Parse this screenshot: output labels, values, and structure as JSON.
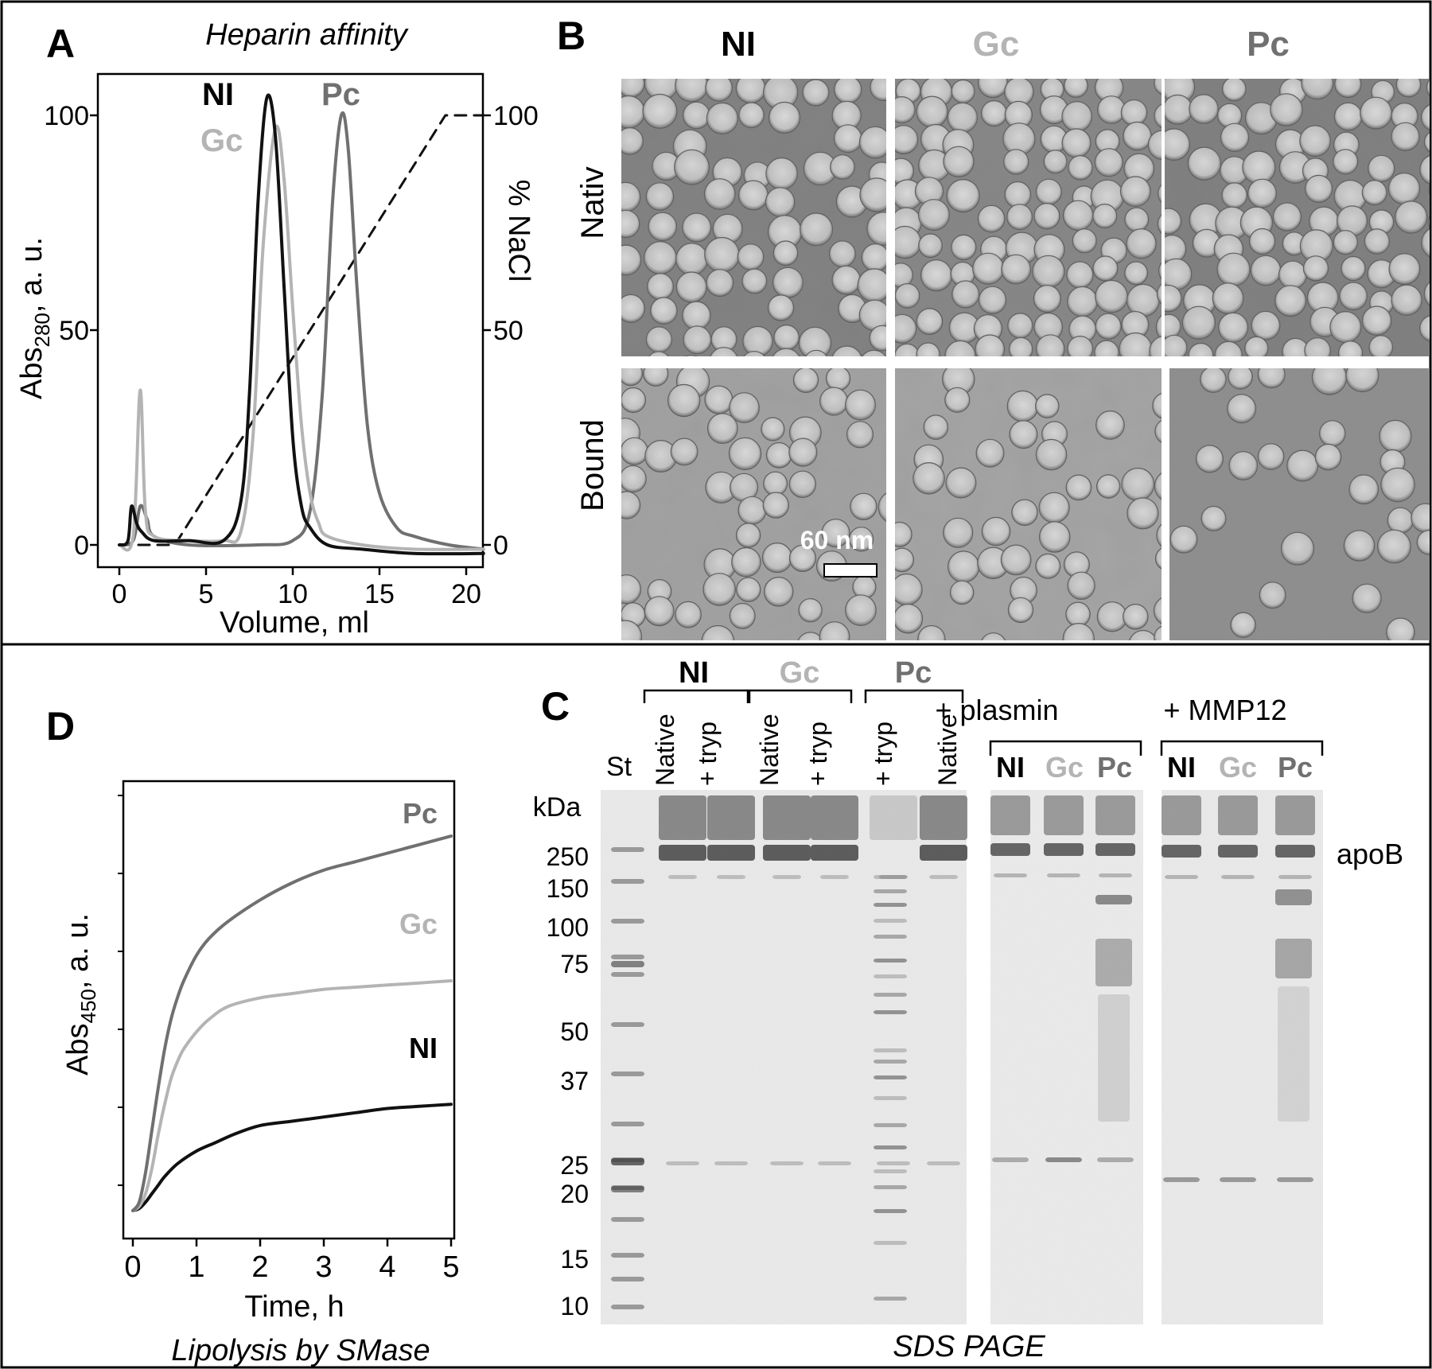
{
  "colors": {
    "ni": "#111111",
    "gc": "#b4b4b4",
    "pc": "#707070",
    "nacl": "#111111"
  },
  "panel_a": {
    "letter": "A",
    "title": "Heparin affinity",
    "ylabel_main": "Abs",
    "ylabel_sub": "280",
    "ylabel_tail": ", a. u.",
    "y2label": "% NaCl",
    "xlabel": "Volume, ml",
    "xticks": [
      "0",
      "5",
      "10",
      "15",
      "20"
    ],
    "yticks": [
      "0",
      "50",
      "100"
    ],
    "y2ticks": [
      "0",
      "50",
      "100"
    ],
    "labels": {
      "ni": "NI",
      "gc": "Gc",
      "pc": "Pc"
    }
  },
  "panel_b": {
    "letter": "B",
    "columns": [
      "NI",
      "Gc",
      "Pc"
    ],
    "rows": [
      "Nativ",
      "Bound"
    ],
    "scalebar": "60 nm"
  },
  "panel_c": {
    "letter": "C",
    "groups": [
      "NI",
      "Gc",
      "Pc"
    ],
    "lane_labels": [
      "Native",
      "+ tryp",
      "Native",
      "+ tryp",
      "+ tryp",
      "Native"
    ],
    "plasmin_label": "+ plasmin",
    "mmp_label": "+ MMP12",
    "sub_labels": [
      "NI",
      "Gc",
      "Pc"
    ],
    "std_label": "St",
    "unit": "kDa",
    "markers": [
      "250",
      "150",
      "100",
      "75",
      "50",
      "37",
      "25",
      "20",
      "15",
      "10"
    ],
    "band_label": "apoB",
    "caption": "SDS PAGE"
  },
  "panel_d": {
    "letter": "D",
    "ylabel_main": "Abs",
    "ylabel_sub": "450",
    "ylabel_tail": ", a. u.",
    "xlabel": "Time, h",
    "xticks": [
      "0",
      "1",
      "2",
      "3",
      "4",
      "5"
    ],
    "caption": "Lipolysis by SMase",
    "labels": {
      "pc": "Pc",
      "gc": "Gc",
      "ni": "NI"
    }
  },
  "chart_data": [
    {
      "type": "line",
      "panel": "A",
      "title": "Heparin affinity",
      "xlabel": "Volume, ml",
      "ylabel": "Abs 280, a. u.",
      "y2label": "% NaCl",
      "xlim": [
        0,
        21
      ],
      "ylim": [
        0,
        100
      ],
      "series": [
        {
          "name": "NI",
          "x": [
            0,
            0.5,
            0.7,
            1,
            1.3,
            2,
            4,
            6,
            7,
            7.5,
            8,
            8.5,
            9,
            9.5,
            10,
            10.5,
            11,
            12,
            14,
            17,
            21
          ],
          "y": [
            0,
            1,
            9,
            5,
            3,
            1,
            1,
            1,
            10,
            35,
            80,
            104,
            95,
            60,
            25,
            9,
            4,
            0,
            -1,
            -2,
            -2
          ]
        },
        {
          "name": "Gc",
          "x": [
            0,
            0.8,
            1.2,
            1.5,
            2,
            4,
            6,
            7,
            7.7,
            8.3,
            9,
            9.5,
            10,
            10.5,
            11,
            11.5,
            12,
            14,
            17,
            21
          ],
          "y": [
            0,
            2,
            36,
            8,
            2,
            1,
            1,
            3,
            25,
            70,
            97,
            85,
            55,
            28,
            12,
            5,
            2,
            0,
            -1,
            -1
          ]
        },
        {
          "name": "Pc",
          "x": [
            0,
            0.8,
            1.2,
            1.6,
            2,
            4,
            8,
            10,
            11,
            11.7,
            12.3,
            12.8,
            13.2,
            13.7,
            14.3,
            15,
            16,
            17,
            19,
            21
          ],
          "y": [
            0,
            1,
            9,
            6,
            2,
            0,
            0,
            1,
            8,
            35,
            80,
            100,
            92,
            60,
            28,
            12,
            4,
            2,
            0,
            -1
          ]
        },
        {
          "name": "% NaCl",
          "x": [
            0,
            3.2,
            18.8,
            21
          ],
          "y": [
            0,
            0,
            100,
            100
          ]
        }
      ]
    },
    {
      "type": "line",
      "panel": "D",
      "caption": "Lipolysis by SMase",
      "xlabel": "Time, h",
      "ylabel": "Abs 450, a. u.",
      "xlim": [
        0,
        5
      ],
      "series": [
        {
          "name": "Pc",
          "x": [
            0,
            0.1,
            0.2,
            0.3,
            0.4,
            0.5,
            0.6,
            0.7,
            0.8,
            1.0,
            1.2,
            1.5,
            2.0,
            2.5,
            3.0,
            3.5,
            4.0,
            4.5,
            5.0
          ],
          "y": [
            0.06,
            0.08,
            0.15,
            0.25,
            0.35,
            0.44,
            0.51,
            0.56,
            0.6,
            0.66,
            0.7,
            0.74,
            0.79,
            0.83,
            0.86,
            0.88,
            0.9,
            0.92,
            0.94
          ]
        },
        {
          "name": "Gc",
          "x": [
            0,
            0.1,
            0.2,
            0.3,
            0.4,
            0.5,
            0.6,
            0.7,
            0.8,
            1.0,
            1.2,
            1.5,
            2.0,
            2.5,
            3.0,
            3.5,
            4.0,
            4.5,
            5.0
          ],
          "y": [
            0.06,
            0.07,
            0.1,
            0.16,
            0.24,
            0.31,
            0.37,
            0.41,
            0.44,
            0.48,
            0.51,
            0.54,
            0.56,
            0.57,
            0.58,
            0.585,
            0.59,
            0.595,
            0.6
          ]
        },
        {
          "name": "NI",
          "x": [
            0,
            0.1,
            0.2,
            0.3,
            0.4,
            0.5,
            0.7,
            1.0,
            1.3,
            1.6,
            2.0,
            2.5,
            3.0,
            3.5,
            4.0,
            4.5,
            5.0
          ],
          "y": [
            0.06,
            0.065,
            0.08,
            0.1,
            0.12,
            0.14,
            0.17,
            0.2,
            0.22,
            0.24,
            0.26,
            0.27,
            0.28,
            0.29,
            0.3,
            0.305,
            0.31
          ]
        }
      ]
    }
  ]
}
